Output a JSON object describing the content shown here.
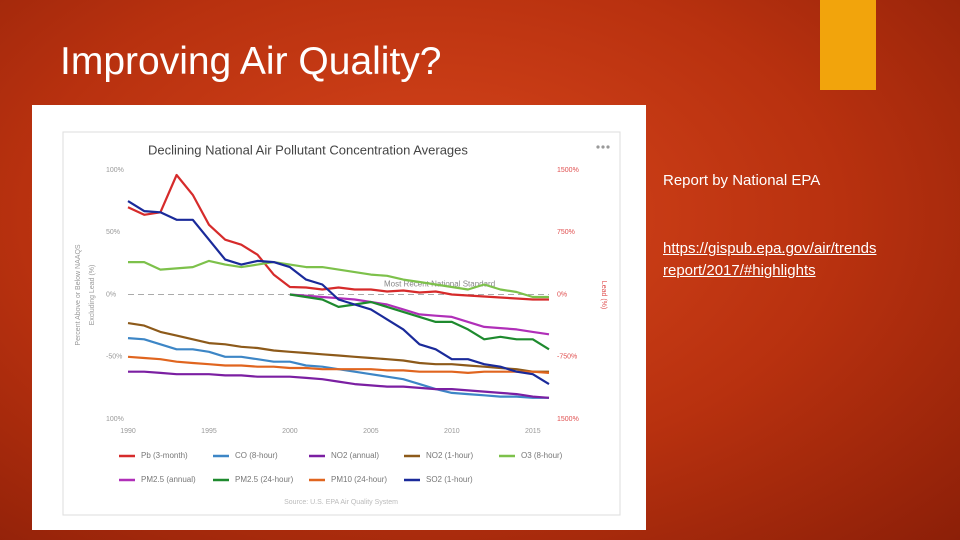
{
  "slide": {
    "title": "Improving Air Quality?",
    "report_text": "Report by National EPA",
    "link": "https://gispub.epa.gov/air/trends report/2017/#highlights"
  },
  "chart_data": {
    "type": "line",
    "title": "Declining National Air Pollutant Concentration Averages",
    "ylabel": [
      "Percent Above or Below NAAQS",
      "Excluding Lead (%)"
    ],
    "y2label": "Lead (%)",
    "source": "Source: U.S. EPA Air Quality System",
    "reference_line": {
      "value": 0,
      "label": "Most Recent National Standard"
    },
    "x": [
      1990,
      1991,
      1992,
      1993,
      1994,
      1995,
      1996,
      1997,
      1998,
      1999,
      2000,
      2001,
      2002,
      2003,
      2004,
      2005,
      2006,
      2007,
      2008,
      2009,
      2010,
      2011,
      2012,
      2013,
      2014,
      2015,
      2016
    ],
    "xlim": [
      1990,
      2016
    ],
    "xticks": [
      1990,
      1995,
      2000,
      2005,
      2010,
      2015
    ],
    "ylim": [
      -100,
      100
    ],
    "yticks": [
      {
        "value": 100,
        "label": "100%"
      },
      {
        "value": 50,
        "label": "50%"
      },
      {
        "value": 0,
        "label": "0%"
      },
      {
        "value": -50,
        "label": "-50%"
      },
      {
        "value": -100,
        "label": "100%"
      }
    ],
    "y2lim": [
      -1500,
      1500
    ],
    "y2ticks": [
      {
        "value": 1500,
        "label": "1500%"
      },
      {
        "value": 750,
        "label": "750%"
      },
      {
        "value": 0,
        "label": "0%"
      },
      {
        "value": -750,
        "label": "-750%"
      },
      {
        "value": -1500,
        "label": "1500%"
      }
    ],
    "series": [
      {
        "name": "Pb (3-month)",
        "color": "#d62b2b",
        "axis": "y2",
        "values": [
          1050,
          960,
          990,
          1440,
          1200,
          840,
          660,
          600,
          480,
          240,
          90,
          84,
          60,
          84,
          60,
          60,
          36,
          48,
          24,
          36,
          0,
          -12,
          -24,
          -36,
          -48,
          -60,
          -60
        ]
      },
      {
        "name": "CO (8-hour)",
        "color": "#3d86c6",
        "values": [
          -35,
          -36,
          -40,
          -44,
          -44,
          -46,
          -50,
          -50,
          -52,
          -54,
          -54,
          -57,
          -58,
          -60,
          -62,
          -64,
          -66,
          -68,
          -72,
          -76,
          -79,
          -80,
          -81,
          -82,
          -82,
          -83,
          -83
        ]
      },
      {
        "name": "NO2 (annual)",
        "color": "#7b1fa2",
        "values": [
          -62,
          -62,
          -63,
          -64,
          -64,
          -64,
          -65,
          -65,
          -66,
          -66,
          -66,
          -67,
          -68,
          -70,
          -72,
          -73,
          -74,
          -74,
          -75,
          -76,
          -76,
          -77,
          -78,
          -79,
          -80,
          -82,
          -83
        ]
      },
      {
        "name": "NO2 (1-hour)",
        "color": "#8d5a1a",
        "values": [
          -23,
          -25,
          -30,
          -33,
          -36,
          -39,
          -40,
          -42,
          -43,
          -45,
          -46,
          -47,
          -48,
          -49,
          -50,
          -51,
          -52,
          -53,
          -55,
          -56,
          -56,
          -57,
          -58,
          -59,
          -60,
          -62,
          -62
        ]
      },
      {
        "name": "O3 (8-hour)",
        "color": "#7dc14b",
        "values": [
          26,
          26,
          20,
          21,
          22,
          27,
          24,
          22,
          24,
          26,
          24,
          22,
          22,
          20,
          18,
          16,
          15,
          12,
          10,
          8,
          6,
          4,
          8,
          4,
          2,
          -2,
          -2
        ]
      },
      {
        "name": "PM2.5 (annual)",
        "color": "#b02fb8",
        "values": [
          null,
          null,
          null,
          null,
          null,
          null,
          null,
          null,
          null,
          null,
          0,
          -1,
          -2,
          -3,
          -4,
          -6,
          -8,
          -12,
          -16,
          -17,
          -18,
          -22,
          -26,
          -27,
          -28,
          -30,
          -32
        ]
      },
      {
        "name": "PM2.5 (24-hour)",
        "color": "#1e8a2e",
        "values": [
          null,
          null,
          null,
          null,
          null,
          null,
          null,
          null,
          null,
          null,
          0,
          -2,
          -4,
          -10,
          -8,
          -6,
          -10,
          -14,
          -18,
          -22,
          -22,
          -28,
          -36,
          -34,
          -36,
          -36,
          -44
        ]
      },
      {
        "name": "PM10 (24-hour)",
        "color": "#e0651f",
        "values": [
          -50,
          -51,
          -52,
          -54,
          -55,
          -56,
          -57,
          -57,
          -58,
          -58,
          -59,
          -59,
          -60,
          -60,
          -60,
          -60,
          -61,
          -61,
          -62,
          -62,
          -62,
          -63,
          -62,
          -62,
          -62,
          -62,
          -63
        ]
      },
      {
        "name": "SO2 (1-hour)",
        "color": "#1a2a9a",
        "values": [
          75,
          67,
          66,
          60,
          60,
          44,
          28,
          24,
          27,
          26,
          22,
          12,
          8,
          -4,
          -8,
          -12,
          -20,
          -28,
          -40,
          -44,
          -52,
          -52,
          -56,
          -58,
          -62,
          -64,
          -72
        ]
      }
    ]
  }
}
